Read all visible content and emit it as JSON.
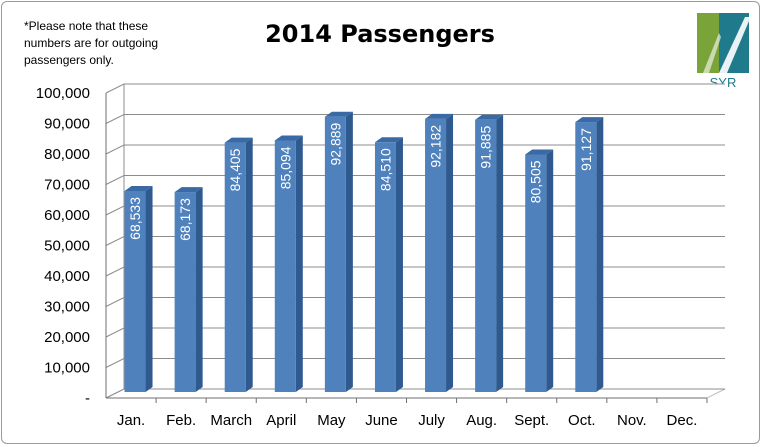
{
  "note": "*Please note that these numbers are for outgoing passengers only.",
  "logo": {
    "text": "SYR",
    "colors": [
      "#7aa33a",
      "#1f7a8c",
      "#2d8b99"
    ]
  },
  "colors": {
    "bar_front": "#4f81bd",
    "bar_side": "#2f5a8f",
    "bar_top": "#3a6aa6",
    "grid": "#8c8c8c",
    "floor": "#bfbfbf"
  },
  "chart_data": {
    "type": "bar",
    "title": "2014 Passengers",
    "categories": [
      "Jan.",
      "Feb.",
      "March",
      "April",
      "May",
      "June",
      "July",
      "Aug.",
      "Sept.",
      "Oct.",
      "Nov.",
      "Dec."
    ],
    "values": [
      68533,
      68173,
      84405,
      85094,
      92889,
      84510,
      92182,
      91885,
      80505,
      91127,
      null,
      null
    ],
    "data_labels": [
      "68,533",
      "68,173",
      "84,405",
      "85,094",
      "92,889",
      "84,510",
      "92,182",
      "91,885",
      "80,505",
      "91,127",
      "",
      ""
    ],
    "ylim": [
      0,
      100000
    ],
    "yticks": [
      "-",
      "10,000",
      "20,000",
      "30,000",
      "40,000",
      "50,000",
      "60,000",
      "70,000",
      "80,000",
      "90,000",
      "100,000"
    ],
    "grid": true,
    "legend": "none"
  }
}
